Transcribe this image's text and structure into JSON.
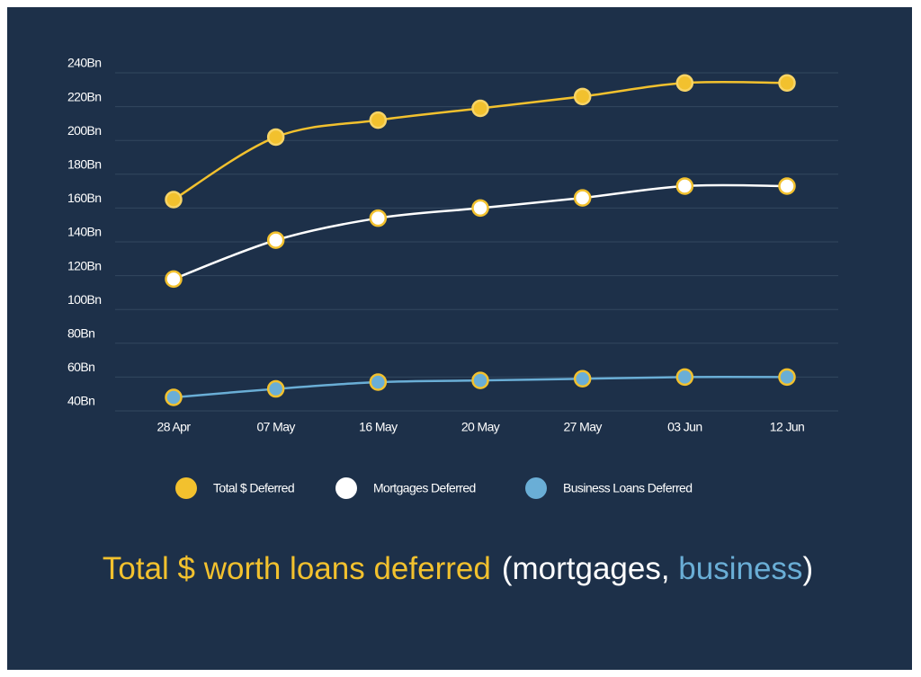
{
  "chart_data": {
    "type": "line",
    "title_parts": [
      {
        "text": "Total $ worth loans deferred",
        "color": "#f2c12e"
      },
      {
        "text": "(mortgages, ",
        "color": "#ffffff"
      },
      {
        "text": "business",
        "color": "#6aaed6"
      },
      {
        "text": ")",
        "color": "#ffffff"
      }
    ],
    "categories": [
      "28 Apr",
      "07 May",
      "16 May",
      "20 May",
      "27 May",
      "03 Jun",
      "12 Jun"
    ],
    "series": [
      {
        "name": "Total $ Deferred",
        "color": "#f2c12e",
        "marker_fill": "#f2c12e",
        "marker_stroke": "#f7d466",
        "values": [
          165,
          202,
          212,
          219,
          226,
          234,
          234
        ]
      },
      {
        "name": "Mortgages Deferred",
        "color": "#ffffff",
        "marker_fill": "#ffffff",
        "marker_stroke": "#f2c12e",
        "values": [
          118,
          141,
          154,
          160,
          166,
          173,
          173
        ]
      },
      {
        "name": "Business Loans Deferred",
        "color": "#6aaed6",
        "marker_fill": "#6aaed6",
        "marker_stroke": "#f2c12e",
        "values": [
          48,
          53,
          57,
          58,
          59,
          60,
          60
        ]
      }
    ],
    "ylim": [
      40,
      240
    ],
    "yticks": [
      {
        "value": 240,
        "label": "240Bn"
      },
      {
        "value": 220,
        "label": "220Bn"
      },
      {
        "value": 200,
        "label": "200Bn"
      },
      {
        "value": 180,
        "label": "180Bn"
      },
      {
        "value": 160,
        "label": "160Bn"
      },
      {
        "value": 140,
        "label": "140Bn"
      },
      {
        "value": 120,
        "label": "120Bn"
      },
      {
        "value": 100,
        "label": "100Bn"
      },
      {
        "value": 80,
        "label": "80Bn"
      },
      {
        "value": 60,
        "label": "60Bn"
      },
      {
        "value": 40,
        "label": "40Bn"
      }
    ],
    "grid": true,
    "legend": "bottom"
  }
}
